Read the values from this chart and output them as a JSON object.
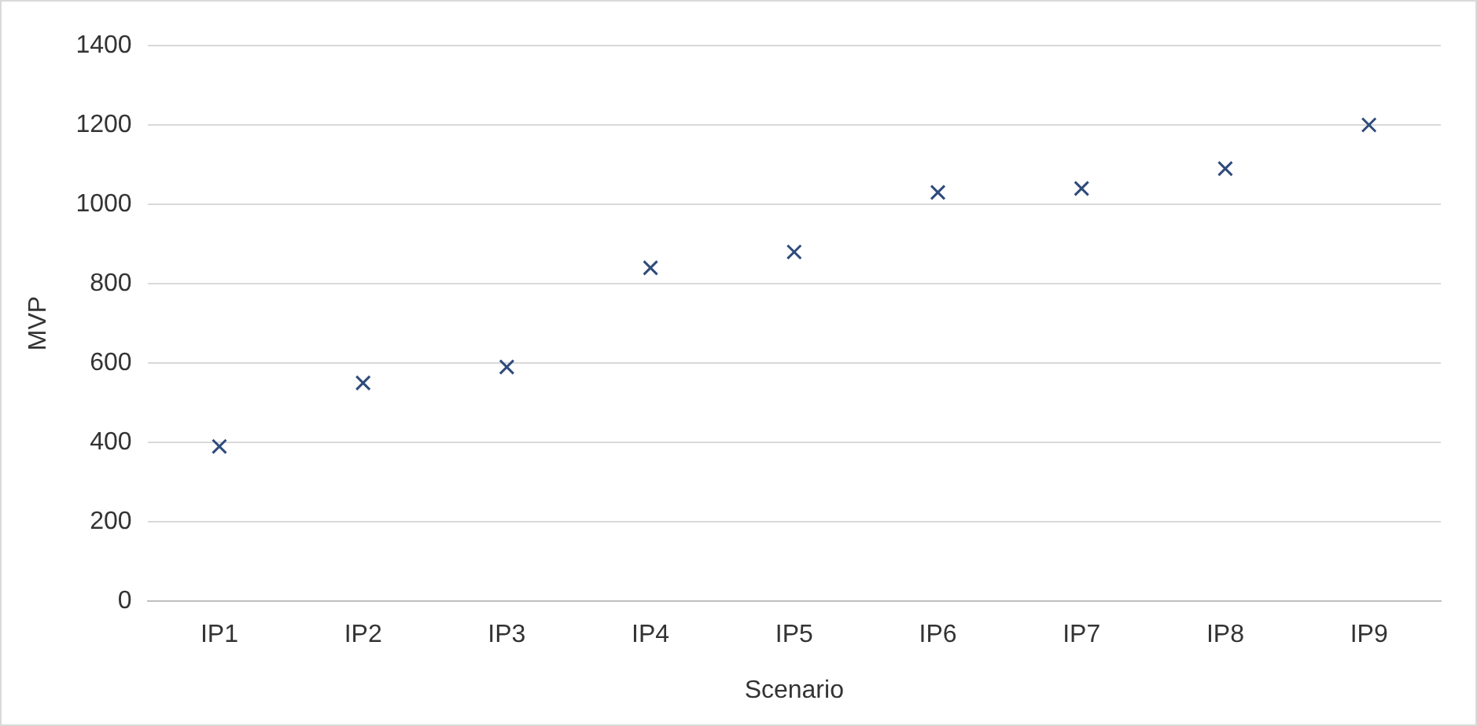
{
  "chart_data": {
    "type": "scatter",
    "xlabel": "Scenario",
    "ylabel": "MVP",
    "categories": [
      "IP1",
      "IP2",
      "IP3",
      "IP4",
      "IP5",
      "IP6",
      "IP7",
      "IP8",
      "IP9"
    ],
    "values": [
      390,
      550,
      590,
      840,
      880,
      1030,
      1040,
      1090,
      1200
    ],
    "color": "#2f4b7c",
    "marker": "cross",
    "ylim": [
      0,
      1400
    ],
    "yticks": [
      0,
      200,
      400,
      600,
      800,
      1000,
      1200,
      1400
    ],
    "grid": "y",
    "legend": false
  }
}
